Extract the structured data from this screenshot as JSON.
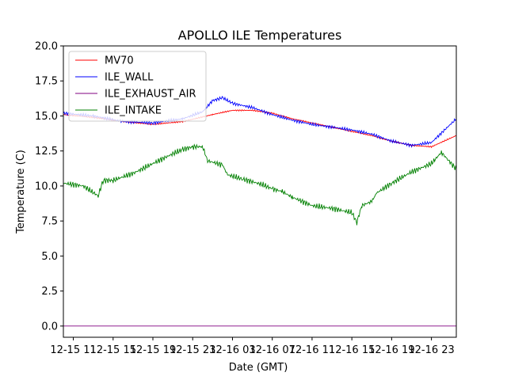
{
  "chart_data": {
    "type": "line",
    "title": "APOLLO ILE Temperatures",
    "xlabel": "Date (GMT)",
    "ylabel": "Temperature (C)",
    "x_unit": "hours since 12-15 11:00",
    "xlim": [
      -1.0,
      38.5
    ],
    "ylim": [
      -0.8,
      20.0
    ],
    "yticks": [
      0.0,
      2.5,
      5.0,
      7.5,
      10.0,
      12.5,
      15.0,
      17.5,
      20.0
    ],
    "ytick_labels": [
      "0.0",
      "2.5",
      "5.0",
      "7.5",
      "10.0",
      "12.5",
      "15.0",
      "17.5",
      "20.0"
    ],
    "xticks": [
      0,
      4,
      8,
      12,
      16,
      20,
      24,
      28,
      32,
      36
    ],
    "xtick_labels": [
      "12-15 11",
      "12-15 15",
      "12-15 19",
      "12-15 23",
      "12-16 03",
      "12-16 07",
      "12-16 11",
      "12-16 15",
      "12-16 19",
      "12-16 23"
    ],
    "grid": false,
    "legend_position": "upper-left",
    "series": [
      {
        "name": "MV70",
        "color": "#ff0000",
        "x": [
          -1,
          2,
          5,
          8,
          11,
          14,
          16,
          18,
          20,
          22,
          24,
          26,
          28,
          30,
          32,
          34,
          36,
          38.5
        ],
        "y": [
          15.1,
          14.9,
          14.6,
          14.4,
          14.6,
          15.1,
          15.4,
          15.4,
          15.2,
          14.8,
          14.5,
          14.2,
          13.9,
          13.6,
          13.2,
          12.9,
          12.8,
          13.6
        ]
      },
      {
        "name": "ILE_WALL",
        "color": "#0000ff",
        "x": [
          -1,
          2,
          5,
          8,
          11,
          13,
          14,
          15,
          16,
          18,
          20,
          22,
          24,
          26,
          28,
          30,
          32,
          34,
          36,
          38.5
        ],
        "y": [
          15.2,
          15.0,
          14.6,
          14.5,
          14.8,
          15.3,
          16.1,
          16.3,
          15.9,
          15.6,
          15.1,
          14.7,
          14.4,
          14.2,
          14.0,
          13.7,
          13.2,
          12.9,
          13.1,
          14.8
        ]
      },
      {
        "name": "ILE_EXHAUST_AIR",
        "color": "#800080",
        "x": [
          -1,
          38.5
        ],
        "y": [
          0.0,
          0.0
        ]
      },
      {
        "name": "ILE_INTAKE",
        "color": "#008000",
        "x": [
          -1,
          1,
          2.5,
          3,
          4,
          6,
          8,
          10,
          11,
          12,
          13,
          13.5,
          15,
          15.5,
          17,
          19,
          20,
          21,
          22,
          24,
          26,
          28,
          28.5,
          29,
          30,
          30.5,
          32,
          34,
          36,
          37,
          38.5
        ],
        "y": [
          10.2,
          10.0,
          9.3,
          10.4,
          10.4,
          10.9,
          11.6,
          12.3,
          12.6,
          12.8,
          12.8,
          11.8,
          11.5,
          10.8,
          10.5,
          10.1,
          9.8,
          9.6,
          9.2,
          8.6,
          8.4,
          8.1,
          7.4,
          8.6,
          8.9,
          9.5,
          10.2,
          11.0,
          11.6,
          12.4,
          11.2
        ]
      }
    ]
  }
}
